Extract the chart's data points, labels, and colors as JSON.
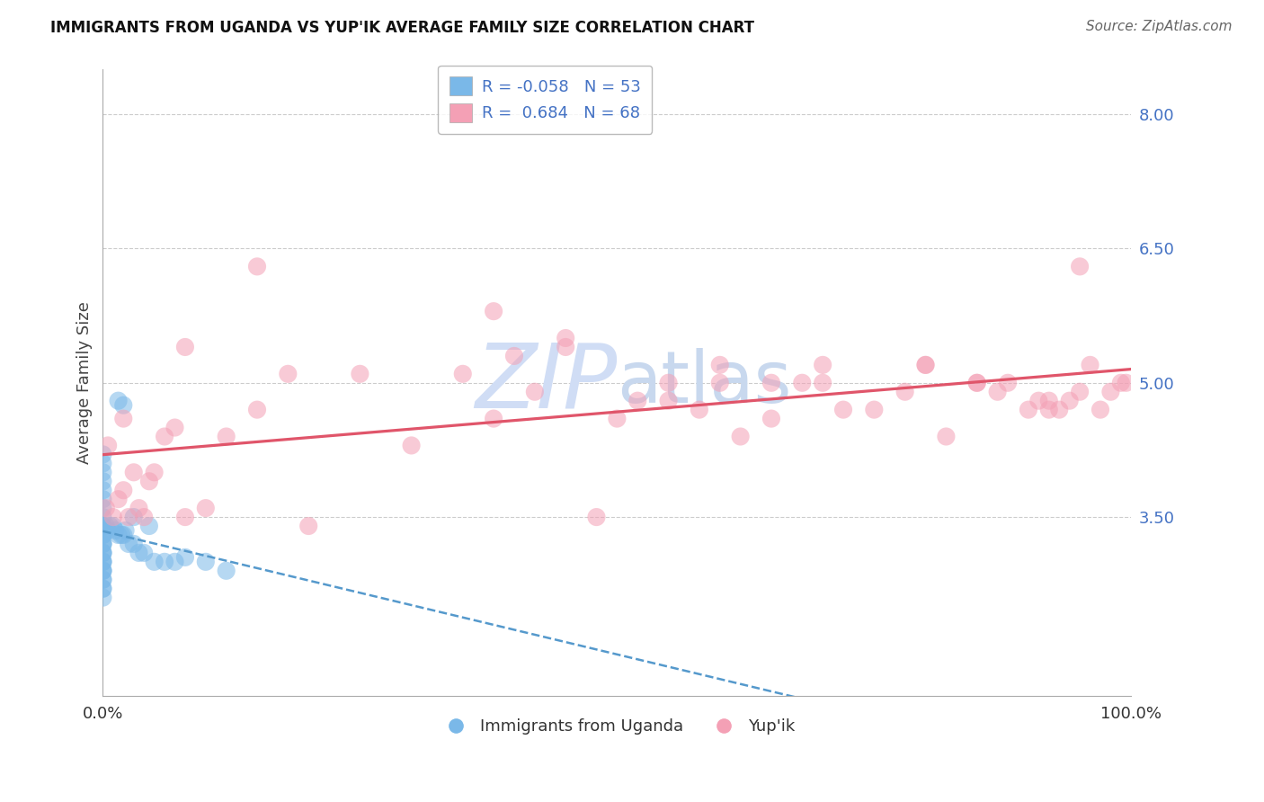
{
  "title": "IMMIGRANTS FROM UGANDA VS YUP'IK AVERAGE FAMILY SIZE CORRELATION CHART",
  "source": "Source: ZipAtlas.com",
  "ylabel": "Average Family Size",
  "ytick_vals": [
    3.5,
    5.0,
    6.5,
    8.0
  ],
  "color_uganda": "#7ab8e8",
  "color_yupik": "#f4a0b5",
  "color_line_uganda": "#5599cc",
  "color_line_yupik": "#e0556a",
  "color_grid": "#cccccc",
  "bg_color": "#ffffff",
  "r_uganda": -0.058,
  "n_uganda": 53,
  "r_yupik": 0.684,
  "n_yupik": 68,
  "xlim": [
    0,
    100
  ],
  "ylim": [
    1.5,
    8.5
  ],
  "watermark_color": "#d0ddf5",
  "title_fontsize": 12,
  "axis_fontsize": 13,
  "legend_fontsize": 13,
  "uganda_scatter_x": [
    0.0,
    0.0,
    0.0,
    0.0,
    0.0,
    0.0,
    0.0,
    0.0,
    0.0,
    0.0,
    0.0,
    0.0,
    0.0,
    0.0,
    0.0,
    0.0,
    0.0,
    0.0,
    0.0,
    0.0,
    0.0,
    0.0,
    0.0,
    0.0,
    0.0,
    0.0,
    0.0,
    0.0,
    0.0,
    0.0,
    0.5,
    0.7,
    1.0,
    1.2,
    1.5,
    2.0,
    2.5,
    3.0,
    1.8,
    2.2,
    3.5,
    5.0,
    4.0,
    6.0,
    8.0,
    10.0,
    12.0,
    2.0,
    1.5,
    3.0,
    4.5,
    7.0,
    0.3
  ],
  "uganda_scatter_y": [
    3.4,
    3.3,
    3.2,
    3.1,
    3.0,
    2.9,
    2.8,
    2.7,
    2.6,
    3.5,
    3.6,
    3.7,
    3.8,
    3.9,
    4.0,
    4.1,
    4.2,
    3.3,
    3.2,
    3.1,
    3.0,
    2.9,
    2.8,
    2.7,
    3.4,
    3.3,
    3.2,
    3.1,
    3.0,
    2.9,
    3.35,
    3.4,
    3.4,
    3.35,
    3.3,
    3.3,
    3.2,
    3.2,
    3.3,
    3.35,
    3.1,
    3.0,
    3.1,
    3.0,
    3.05,
    3.0,
    2.9,
    4.75,
    4.8,
    3.5,
    3.4,
    3.0,
    3.4
  ],
  "yupik_scatter_x": [
    0.3,
    0.5,
    1.0,
    1.5,
    2.0,
    2.5,
    3.0,
    3.5,
    4.0,
    5.0,
    6.0,
    7.0,
    8.0,
    10.0,
    12.0,
    15.0,
    18.0,
    20.0,
    25.0,
    30.0,
    35.0,
    38.0,
    40.0,
    42.0,
    45.0,
    48.0,
    50.0,
    52.0,
    55.0,
    58.0,
    60.0,
    62.0,
    65.0,
    68.0,
    70.0,
    72.0,
    75.0,
    78.0,
    80.0,
    82.0,
    85.0,
    87.0,
    88.0,
    90.0,
    91.0,
    92.0,
    93.0,
    94.0,
    95.0,
    96.0,
    97.0,
    98.0,
    99.0,
    99.5,
    2.0,
    4.5,
    8.0,
    15.0,
    38.0,
    45.0,
    55.0,
    60.0,
    65.0,
    70.0,
    80.0,
    85.0,
    92.0,
    95.0
  ],
  "yupik_scatter_y": [
    3.6,
    4.3,
    3.5,
    3.7,
    3.8,
    3.5,
    4.0,
    3.6,
    3.5,
    4.0,
    4.4,
    4.5,
    3.5,
    3.6,
    4.4,
    4.7,
    5.1,
    3.4,
    5.1,
    4.3,
    5.1,
    4.6,
    5.3,
    4.9,
    5.5,
    3.5,
    4.6,
    4.8,
    4.8,
    4.7,
    5.0,
    4.4,
    5.0,
    5.0,
    5.0,
    4.7,
    4.7,
    4.9,
    5.2,
    4.4,
    5.0,
    4.9,
    5.0,
    4.7,
    4.8,
    4.8,
    4.7,
    4.8,
    4.9,
    5.2,
    4.7,
    4.9,
    5.0,
    5.0,
    4.6,
    3.9,
    5.4,
    6.3,
    5.8,
    5.4,
    5.0,
    5.2,
    4.6,
    5.2,
    5.2,
    5.0,
    4.7,
    6.3
  ]
}
